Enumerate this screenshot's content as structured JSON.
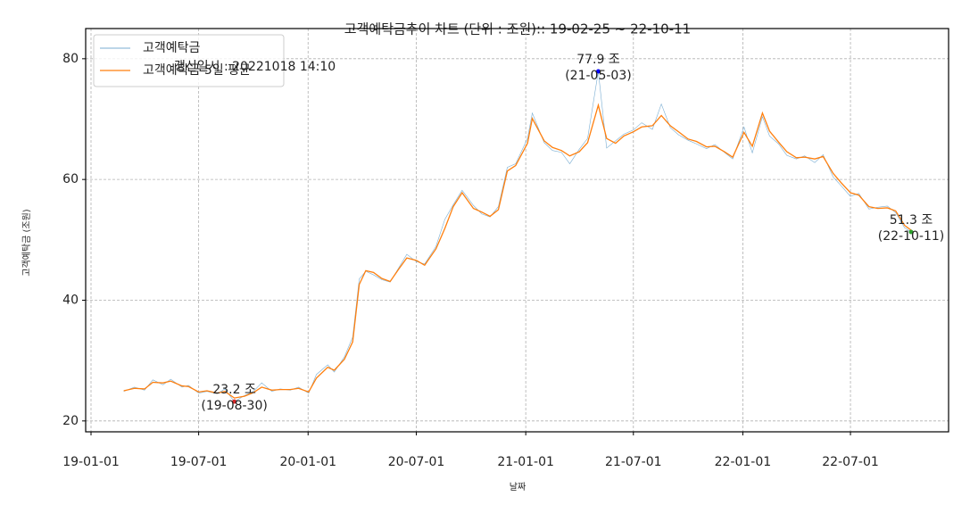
{
  "chart_data": {
    "type": "line",
    "title": "고객예탁금추이 차트 (단위 : 조원):: 19-02-25 ~ 22-10-11",
    "x_label": "날짜",
    "y_label": "고객예탁금 (조원)",
    "update_note": "갱신일시 : 20221018 14:10",
    "update_note_color": "#0000ff",
    "x": [
      "19-02-25",
      "19-03-15",
      "19-04-01",
      "19-04-15",
      "19-05-02",
      "19-05-15",
      "19-06-03",
      "19-06-14",
      "19-07-01",
      "19-07-15",
      "19-08-01",
      "19-08-14",
      "19-08-30",
      "19-09-16",
      "19-10-01",
      "19-10-15",
      "19-11-01",
      "19-11-15",
      "19-12-02",
      "19-12-16",
      "20-01-02",
      "20-01-15",
      "20-02-03",
      "20-02-14",
      "20-03-02",
      "20-03-16",
      "20-03-27",
      "20-04-07",
      "20-04-20",
      "20-05-04",
      "20-05-18",
      "20-06-01",
      "20-06-15",
      "20-07-01",
      "20-07-15",
      "20-08-03",
      "20-08-18",
      "20-09-01",
      "20-09-16",
      "20-10-05",
      "20-10-19",
      "20-11-02",
      "20-11-16",
      "20-12-01",
      "20-12-15",
      "21-01-04",
      "21-01-12",
      "21-02-01",
      "21-02-15",
      "21-03-02",
      "21-03-16",
      "21-04-01",
      "21-04-15",
      "21-05-03",
      "21-05-17",
      "21-06-01",
      "21-06-15",
      "21-07-01",
      "21-07-15",
      "21-08-02",
      "21-08-17",
      "21-09-01",
      "21-09-15",
      "21-10-01",
      "21-10-15",
      "21-11-01",
      "21-11-15",
      "21-12-01",
      "21-12-15",
      "22-01-03",
      "22-01-17",
      "22-02-03",
      "22-02-15",
      "22-03-02",
      "22-03-16",
      "22-04-01",
      "22-04-15",
      "22-05-02",
      "22-05-16",
      "22-06-02",
      "22-06-15",
      "22-07-01",
      "22-07-15",
      "22-08-01",
      "22-08-16",
      "22-09-01",
      "22-09-15",
      "22-09-30",
      "22-10-11"
    ],
    "series": [
      {
        "name": "고객예탁금",
        "color": "#1f77b4",
        "width": 0.6,
        "opacity": 0.6,
        "values": [
          24.9,
          25.6,
          25.1,
          26.8,
          26.0,
          26.9,
          25.6,
          25.9,
          24.6,
          24.9,
          24.5,
          25.3,
          23.2,
          24.2,
          24.9,
          26.3,
          24.9,
          25.3,
          25.1,
          25.6,
          24.6,
          27.7,
          29.3,
          28.1,
          30.6,
          33.9,
          43.5,
          44.8,
          44.2,
          43.4,
          43.0,
          45.3,
          47.6,
          46.4,
          46.0,
          48.9,
          53.4,
          55.8,
          58.2,
          55.7,
          54.3,
          53.8,
          55.5,
          62.0,
          62.6,
          66.8,
          71.0,
          66.1,
          64.8,
          64.5,
          62.6,
          65.0,
          66.8,
          77.9,
          65.2,
          66.4,
          67.5,
          68.2,
          69.4,
          68.3,
          72.5,
          68.6,
          67.4,
          66.5,
          65.9,
          65.1,
          65.8,
          64.5,
          63.4,
          68.7,
          64.4,
          70.4,
          67.2,
          65.9,
          64.0,
          63.4,
          63.9,
          62.8,
          64.1,
          60.4,
          59.0,
          57.2,
          57.7,
          55.1,
          55.4,
          55.6,
          54.5,
          52.0,
          51.3
        ]
      },
      {
        "name": "고객예탁금 5일 평균",
        "color": "#ff7f0e",
        "width": 1.3,
        "opacity": 1,
        "values": [
          25.0,
          25.4,
          25.3,
          26.4,
          26.3,
          26.6,
          25.8,
          25.7,
          24.8,
          25.0,
          24.6,
          24.9,
          23.8,
          24.1,
          24.7,
          25.6,
          25.1,
          25.2,
          25.2,
          25.4,
          24.8,
          27.1,
          28.9,
          28.4,
          30.2,
          33.1,
          42.6,
          44.9,
          44.6,
          43.6,
          43.1,
          45.1,
          47.0,
          46.6,
          45.8,
          48.5,
          51.9,
          55.5,
          57.8,
          55.2,
          54.6,
          53.9,
          55.0,
          61.4,
          62.3,
          66.0,
          70.1,
          66.4,
          65.3,
          64.8,
          63.9,
          64.6,
          66.1,
          72.3,
          66.8,
          66.0,
          67.2,
          67.9,
          68.7,
          68.9,
          70.6,
          68.9,
          67.9,
          66.7,
          66.3,
          65.4,
          65.5,
          64.6,
          63.7,
          67.8,
          65.5,
          71.0,
          68.0,
          66.2,
          64.6,
          63.6,
          63.7,
          63.4,
          63.8,
          61.0,
          59.5,
          57.8,
          57.4,
          55.5,
          55.2,
          55.3,
          54.8,
          52.4,
          51.6
        ]
      }
    ],
    "annotations": [
      {
        "x": "19-08-30",
        "y": 23.2,
        "label": "23.2 조",
        "date_label": "(19-08-30)",
        "color": "#d62728"
      },
      {
        "x": "21-05-03",
        "y": 77.9,
        "label": "77.9 조",
        "date_label": "(21-05-03)",
        "color": "#0000ff"
      },
      {
        "x": "22-10-11",
        "y": 51.3,
        "label": "51.3 조",
        "date_label": "(22-10-11)",
        "color": "#2ca02c"
      }
    ],
    "xlim": [
      "18-12-23",
      "22-12-13"
    ],
    "xticks": [
      "19-01-01",
      "19-07-01",
      "20-01-01",
      "20-07-01",
      "21-01-01",
      "21-07-01",
      "22-01-01",
      "22-07-01"
    ],
    "ylim": [
      18.2,
      85.0
    ],
    "yticks": [
      20,
      40,
      60,
      80
    ],
    "grid": true,
    "legend": "upper left"
  }
}
